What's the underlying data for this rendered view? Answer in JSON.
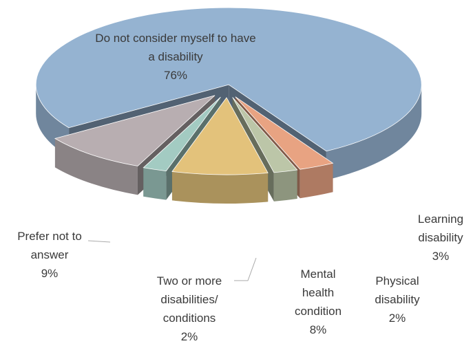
{
  "chart_data": {
    "type": "pie",
    "categories": [
      "Do not consider myself to have a disability",
      "Learning disability",
      "Physical disability",
      "Mental health condition",
      "Two or more disabilities/ conditions",
      "Prefer not to answer"
    ],
    "values": [
      76,
      3,
      2,
      8,
      2,
      9
    ],
    "value_labels": [
      "76%",
      "3%",
      "2%",
      "8%",
      "2%",
      "9%"
    ],
    "colors": [
      "#95b3d1",
      "#e8a382",
      "#bcc6a8",
      "#e3c27b",
      "#a3cbc2",
      "#b8aeb1"
    ]
  }
}
